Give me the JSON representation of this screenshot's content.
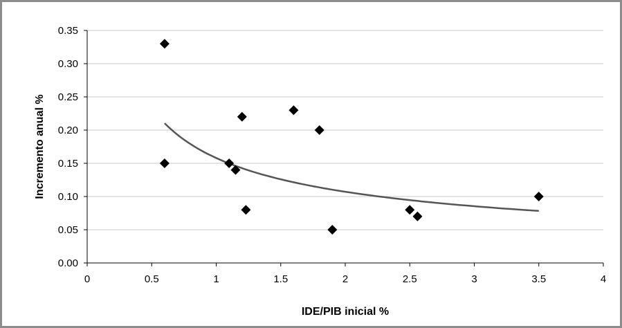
{
  "chart_data": {
    "type": "scatter",
    "title": "",
    "xlabel": "IDE/PIB inicial %",
    "ylabel": "Incremento anual %",
    "xlim": [
      0,
      4
    ],
    "ylim": [
      0,
      0.35
    ],
    "x_ticks": [
      "0",
      "0.5",
      "1",
      "1.5",
      "2",
      "2.5",
      "3",
      "3.5",
      "4"
    ],
    "y_ticks": [
      "0.00",
      "0.05",
      "0.10",
      "0.15",
      "0.20",
      "0.25",
      "0.30",
      "0.35"
    ],
    "grid": "horizontal",
    "legend": "none",
    "marker": "diamond",
    "marker_color": "#000000",
    "trendline_color": "#555555",
    "points": [
      {
        "x": 0.6,
        "y": 0.33
      },
      {
        "x": 0.6,
        "y": 0.15
      },
      {
        "x": 1.1,
        "y": 0.15
      },
      {
        "x": 1.15,
        "y": 0.14
      },
      {
        "x": 1.2,
        "y": 0.22
      },
      {
        "x": 1.23,
        "y": 0.08
      },
      {
        "x": 1.6,
        "y": 0.23
      },
      {
        "x": 1.8,
        "y": 0.2
      },
      {
        "x": 1.9,
        "y": 0.05
      },
      {
        "x": 2.5,
        "y": 0.08
      },
      {
        "x": 2.56,
        "y": 0.07
      },
      {
        "x": 3.5,
        "y": 0.1
      }
    ],
    "trendline": {
      "type": "power",
      "x_range": [
        0.6,
        3.5
      ],
      "coefficient": 0.158,
      "exponent": -0.56
    }
  }
}
